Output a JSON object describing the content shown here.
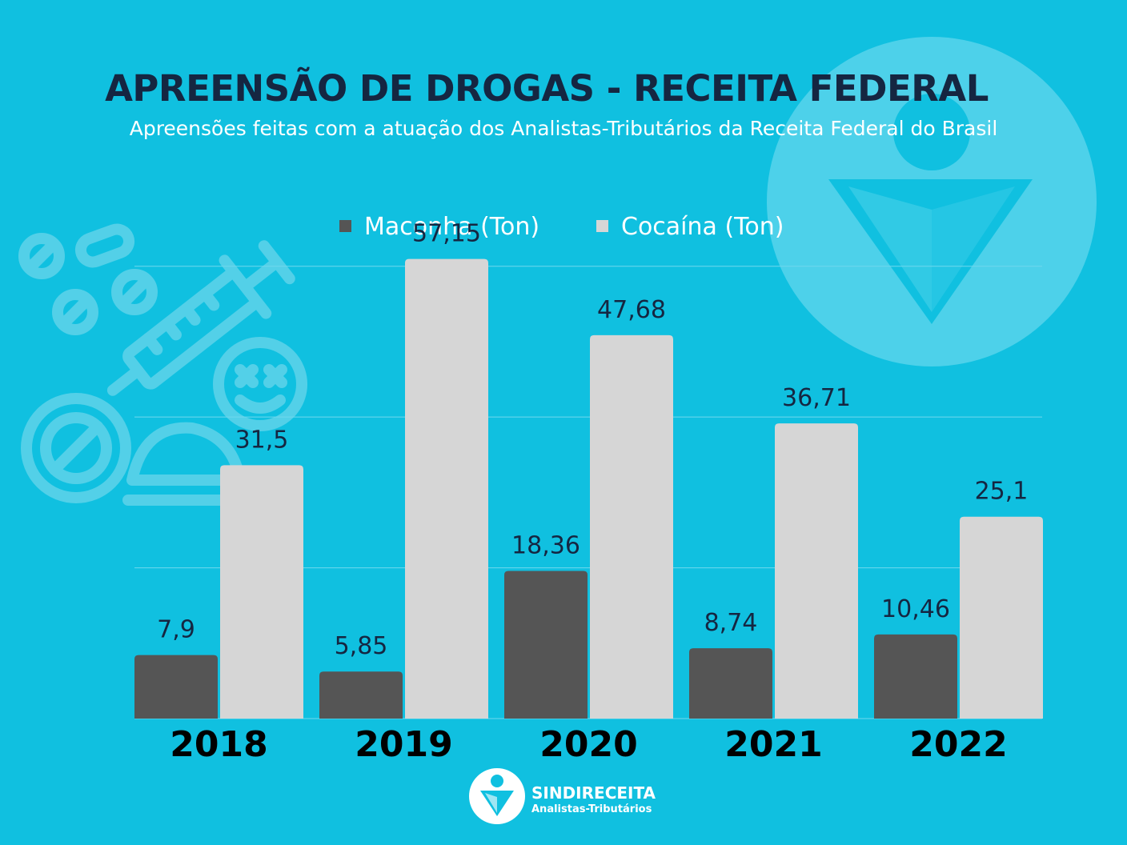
{
  "header": {
    "title": "APREENSÃO DE DROGAS - RECEITA FEDERAL",
    "subtitle": "Apreensões feitas com a atuação dos Analistas-Tributários da Receita Federal do Brasil"
  },
  "footer": {
    "name": "SINDIRECEITA",
    "tagline": "Analistas-Tributários"
  },
  "colors": {
    "background": "#10c0e0",
    "title": "#152641",
    "maconha": "#555555",
    "cocaina": "#d6d6d6"
  },
  "chart_data": {
    "type": "bar",
    "categories": [
      "2018",
      "2019",
      "2020",
      "2021",
      "2022"
    ],
    "series": [
      {
        "name": "Maconha (Ton)",
        "values": [
          7.9,
          5.85,
          18.36,
          8.74,
          10.46
        ],
        "labels": [
          "7,9",
          "5,85",
          "18,36",
          "8,74",
          "10,46"
        ],
        "color": "#555555"
      },
      {
        "name": "Cocaína (Ton)",
        "values": [
          31.5,
          57.15,
          47.68,
          36.71,
          25.1
        ],
        "labels": [
          "31,5",
          "57,15",
          "47,68",
          "36,71",
          "25,1"
        ],
        "color": "#d6d6d6"
      }
    ],
    "ylim": [
      0,
      75
    ],
    "grid": true,
    "legend": "top-center"
  }
}
